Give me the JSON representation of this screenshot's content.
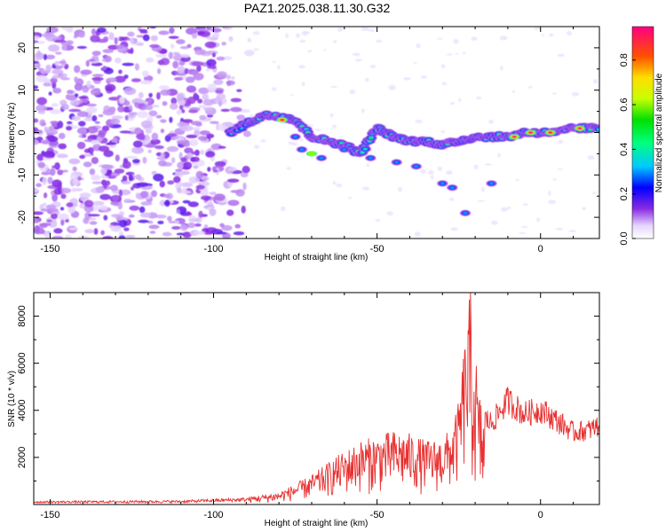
{
  "title": "PAZ1.2025.038.11.30.G32",
  "chart_data": [
    {
      "type": "heatmap",
      "xlabel": "Height of straight line (km)",
      "ylabel": "Frequency (Hz)",
      "xlim": [
        -155,
        18
      ],
      "ylim": [
        -25,
        25
      ],
      "xticks": [
        -150,
        -100,
        -50,
        0
      ],
      "yticks": [
        20,
        10,
        0,
        -10,
        -20
      ],
      "colorbar": {
        "label": "Normalized spectral amplitude",
        "range": [
          0,
          0.95
        ],
        "ticks": [
          0.0,
          0.2,
          0.4,
          0.6,
          0.8
        ]
      },
      "ridge": {
        "x": [
          -95,
          -90,
          -85,
          -80,
          -75,
          -70,
          -65,
          -60,
          -55,
          -50,
          -45,
          -40,
          -35,
          -30,
          -25,
          -20,
          -15,
          -10,
          -5,
          0,
          5,
          10,
          15,
          18
        ],
        "y": [
          0,
          2,
          4,
          4,
          3,
          -1,
          -2,
          -3,
          -5,
          1,
          -1,
          -2,
          -2,
          -3,
          -2,
          -1,
          -1,
          -1,
          0,
          0,
          0,
          1,
          1,
          1
        ]
      },
      "peaks": [
        {
          "x": -79,
          "y": 3,
          "amp": 0.95
        },
        {
          "x": -70,
          "y": -5,
          "amp": 0.6
        },
        {
          "x": -8,
          "y": -1,
          "amp": 0.95
        },
        {
          "x": -3,
          "y": 0,
          "amp": 0.95
        },
        {
          "x": 3,
          "y": 0,
          "amp": 0.9
        },
        {
          "x": 12,
          "y": 1,
          "amp": 0.95
        }
      ]
    },
    {
      "type": "line",
      "xlabel": "Height of straight line (km)",
      "ylabel": "SNR (10 * v/v)",
      "xlim": [
        -155,
        18
      ],
      "ylim": [
        0,
        9000
      ],
      "xticks": [
        -150,
        -100,
        -50,
        0
      ],
      "yticks": [
        2000,
        4000,
        6000,
        8000
      ],
      "color": "#e83030",
      "envelope": {
        "x": [
          -155,
          -110,
          -90,
          -80,
          -70,
          -62,
          -55,
          -50,
          -45,
          -40,
          -35,
          -30,
          -27,
          -25,
          -23,
          -21,
          -20,
          -19,
          -17,
          -15,
          -10,
          -5,
          0,
          5,
          10,
          15,
          18
        ],
        "y": [
          150,
          180,
          300,
          500,
          1200,
          2000,
          2600,
          2800,
          3000,
          2900,
          2600,
          2700,
          3200,
          4200,
          7000,
          8800,
          6500,
          4500,
          3800,
          3600,
          4600,
          4000,
          4200,
          3700,
          3200,
          3300,
          3500
        ]
      }
    }
  ]
}
